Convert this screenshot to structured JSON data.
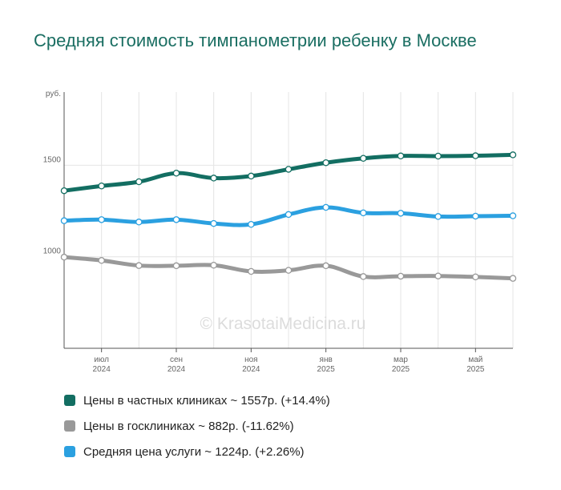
{
  "chart_data": {
    "type": "line",
    "title": "Средняя стоимость тимпанометрии ребенку в Москве",
    "yunit": "руб.",
    "ylim": [
      500,
      1900
    ],
    "yticks": [
      1000,
      1500
    ],
    "x": [
      "2024-05",
      "2024-06",
      "2024-07",
      "2024-08",
      "2024-09",
      "2024-10",
      "2024-11",
      "2024-12",
      "2025-01",
      "2025-02",
      "2025-03",
      "2025-04",
      "2025-05"
    ],
    "xticks": [
      {
        "i": 1,
        "month": "июл",
        "year": "2024"
      },
      {
        "i": 3,
        "month": "сен",
        "year": "2024"
      },
      {
        "i": 5,
        "month": "ноя",
        "year": "2024"
      },
      {
        "i": 7,
        "month": "янв",
        "year": "2025"
      },
      {
        "i": 9,
        "month": "мар",
        "year": "2025"
      },
      {
        "i": 11,
        "month": "май",
        "year": "2025"
      }
    ],
    "series": [
      {
        "name": "Цены в частных клиниках",
        "color": "#136e62",
        "values": [
          1361,
          1387,
          1410,
          1457,
          1430,
          1441,
          1478,
          1514,
          1538,
          1551,
          1550,
          1552,
          1557
        ],
        "legend": "Цены в частных клиниках ~ 1557р. (+14.4%)"
      },
      {
        "name": "Цены в госклиниках",
        "color": "#999999",
        "values": [
          998,
          980,
          952,
          951,
          954,
          920,
          926,
          951,
          892,
          894,
          895,
          890,
          882
        ],
        "legend": "Цены в госклиниках ~ 882р. (-11.62%)"
      },
      {
        "name": "Средняя цена услуги",
        "color": "#2ba0e0",
        "values": [
          1197,
          1203,
          1190,
          1203,
          1182,
          1177,
          1231,
          1270,
          1240,
          1238,
          1220,
          1222,
          1224
        ],
        "legend": "Средняя цена услуги ~ 1224р. (+2.26%)"
      }
    ],
    "watermark": "© KrasotaiMedicina.ru",
    "grid": true
  }
}
